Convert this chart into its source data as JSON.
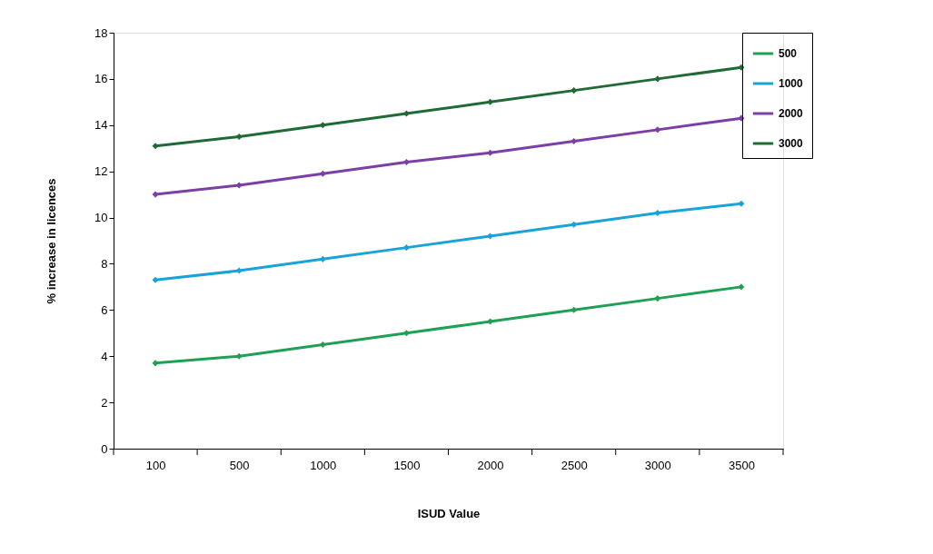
{
  "chart_data": {
    "type": "line",
    "xlabel": "ISUD Value",
    "ylabel": "% increase in licences",
    "categories": [
      "100",
      "500",
      "1000",
      "1500",
      "2000",
      "2500",
      "3000",
      "3500"
    ],
    "series": [
      {
        "name": "500",
        "color": "#1fa055",
        "values": [
          3.7,
          4.0,
          4.5,
          5.0,
          5.5,
          6.0,
          6.5,
          7.0
        ]
      },
      {
        "name": "1000",
        "color": "#1aa3d9",
        "values": [
          7.3,
          7.7,
          8.2,
          8.7,
          9.2,
          9.7,
          10.2,
          10.6
        ]
      },
      {
        "name": "2000",
        "color": "#7b3fa6",
        "values": [
          11.0,
          11.4,
          11.9,
          12.4,
          12.8,
          13.3,
          13.8,
          14.3
        ]
      },
      {
        "name": "3000",
        "color": "#1f6b35",
        "values": [
          13.1,
          13.5,
          14.0,
          14.5,
          15.0,
          15.5,
          16.0,
          16.5
        ]
      }
    ],
    "ylim": [
      0,
      18
    ],
    "yticks": [
      0,
      2,
      4,
      6,
      8,
      10,
      12,
      14,
      16,
      18
    ],
    "grid": false,
    "legend": "right",
    "marker": "diamond",
    "line_style": "solid"
  }
}
